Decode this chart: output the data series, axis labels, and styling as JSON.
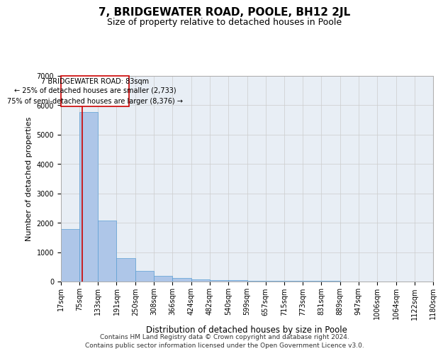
{
  "title": "7, BRIDGEWATER ROAD, POOLE, BH12 2JL",
  "subtitle": "Size of property relative to detached houses in Poole",
  "xlabel": "Distribution of detached houses by size in Poole",
  "ylabel": "Number of detached properties",
  "footer_line1": "Contains HM Land Registry data © Crown copyright and database right 2024.",
  "footer_line2": "Contains public sector information licensed under the Open Government Licence v3.0.",
  "annotation_line1": "7 BRIDGEWATER ROAD: 83sqm",
  "annotation_line2": "← 25% of detached houses are smaller (2,733)",
  "annotation_line3": "75% of semi-detached houses are larger (8,376) →",
  "bin_edges": [
    17,
    75,
    133,
    191,
    250,
    308,
    366,
    424,
    482,
    540,
    599,
    657,
    715,
    773,
    831,
    889,
    947,
    1006,
    1064,
    1122,
    1180
  ],
  "bin_counts": [
    1780,
    5780,
    2080,
    800,
    370,
    200,
    110,
    75,
    55,
    45,
    35,
    28,
    22,
    18,
    14,
    10,
    8,
    6,
    5,
    4
  ],
  "bar_color": "#aec6e8",
  "bar_edgecolor": "#5a9fd4",
  "vline_color": "#cc0000",
  "vline_x": 83,
  "ylim": [
    0,
    7000
  ],
  "yticks": [
    0,
    1000,
    2000,
    3000,
    4000,
    5000,
    6000,
    7000
  ],
  "grid_color": "#cccccc",
  "bg_color": "#e8eef5",
  "title_fontsize": 11,
  "subtitle_fontsize": 9,
  "axis_label_fontsize": 8,
  "tick_fontsize": 7,
  "footer_fontsize": 6.5,
  "annotation_fontsize": 7
}
